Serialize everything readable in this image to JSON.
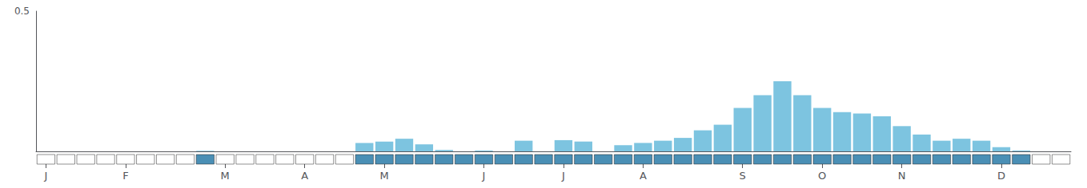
{
  "chart_data": {
    "type": "bar",
    "categories": [
      "J",
      null,
      null,
      null,
      "F",
      null,
      null,
      null,
      null,
      "M",
      null,
      null,
      null,
      "A",
      null,
      null,
      null,
      "M",
      null,
      null,
      null,
      null,
      "J",
      null,
      null,
      null,
      "J",
      null,
      null,
      null,
      "A",
      null,
      null,
      null,
      null,
      "S",
      null,
      null,
      null,
      "O",
      null,
      null,
      null,
      "N",
      null,
      null,
      null,
      null,
      "D",
      null,
      null,
      null
    ],
    "values": [
      0.0,
      0.0,
      0.0,
      0.0,
      0.0,
      0.0,
      0.0,
      0.0,
      0.002,
      0.0,
      0.0,
      0.0,
      0.0,
      0.0,
      0.0,
      0.0,
      0.03,
      0.035,
      0.045,
      0.025,
      0.005,
      0.0,
      0.003,
      0.0,
      0.038,
      0.0,
      0.04,
      0.035,
      0.0,
      0.022,
      0.03,
      0.038,
      0.048,
      0.075,
      0.095,
      0.155,
      0.2,
      0.25,
      0.2,
      0.155,
      0.14,
      0.135,
      0.125,
      0.09,
      0.06,
      0.038,
      0.045,
      0.038,
      0.015,
      0.003,
      0.0,
      0.0
    ],
    "active": [
      false,
      false,
      false,
      false,
      false,
      false,
      false,
      false,
      true,
      false,
      false,
      false,
      false,
      false,
      false,
      false,
      true,
      true,
      true,
      true,
      true,
      true,
      true,
      true,
      true,
      true,
      true,
      true,
      true,
      true,
      true,
      true,
      true,
      true,
      true,
      true,
      true,
      true,
      true,
      true,
      true,
      true,
      true,
      true,
      true,
      true,
      true,
      true,
      true,
      true,
      false,
      false
    ],
    "color": "#7DC4E0",
    "active_color": "#4A8FB5",
    "inactive_color": "#FFFFFF",
    "ylim": [
      0,
      0.5
    ],
    "yticks": [
      0.5
    ],
    "grid": false
  }
}
